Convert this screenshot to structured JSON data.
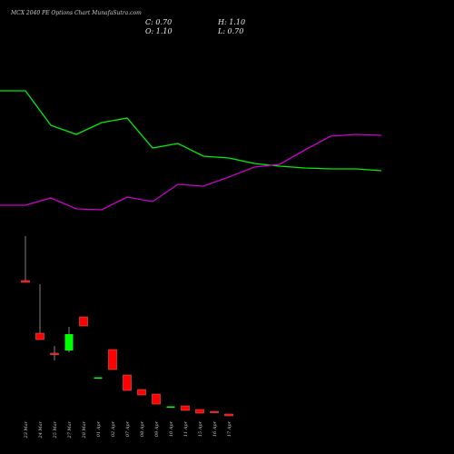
{
  "chart_data": {
    "type": "candlestick",
    "title": "MCX 2040 PE Options Chart MunafaSutra.com",
    "info": [
      "C: 0.70",
      "H: 1.10",
      "O: 1.10",
      "L: 0.70"
    ],
    "categories": [
      "23 Mar",
      "24 Mar",
      "25 Mar",
      "27 Mar",
      "28 Mar",
      "01 Apr",
      "02 Apr",
      "07 Apr",
      "08 Apr",
      "09 Apr",
      "10 Apr",
      "11 Apr",
      "15 Apr",
      "16 Apr",
      "17 Apr"
    ],
    "open": [
      30.5,
      18.9,
      14.5,
      15.1,
      22.5,
      9.0,
      15.3,
      9.7,
      6.5,
      5.5,
      2.7,
      2.9,
      2.1,
      1.7,
      1.1
    ],
    "high": [
      40.3,
      29.7,
      16.1,
      20.3,
      22.5,
      9.2,
      15.3,
      9.7,
      6.5,
      5.5,
      2.8,
      2.9,
      2.1,
      1.7,
      1.1
    ],
    "low": [
      30.1,
      17.5,
      12.9,
      14.7,
      20.5,
      9.0,
      10.9,
      6.3,
      5.3,
      3.3,
      2.7,
      1.9,
      1.3,
      1.5,
      0.7
    ],
    "close": [
      30.1,
      17.5,
      14.3,
      18.7,
      20.5,
      9.2,
      10.9,
      6.3,
      5.3,
      3.3,
      2.8,
      1.9,
      1.3,
      1.5,
      0.7
    ],
    "up_color": "#00ff00",
    "down_color": "#ff0000",
    "ylim": [
      0,
      92.3
    ],
    "lines": {
      "x": [
        0,
        1,
        2,
        3,
        4,
        5,
        6,
        7,
        8,
        9,
        10,
        11,
        12,
        13,
        14,
        15
      ],
      "xlim": [
        0,
        15
      ],
      "y2lim": [
        0,
        130
      ],
      "series": [
        {
          "color": "#00ee00",
          "axis": "y2",
          "values": [
            80,
            80,
            61,
            56,
            62.5,
            65,
            48.5,
            51,
            44,
            43,
            40,
            38.5,
            37.5,
            37,
            37,
            36
          ]
        },
        {
          "color": "#cc00cc",
          "axis": "y2",
          "values": [
            17,
            17,
            21,
            15,
            14.5,
            21.5,
            19,
            28.5,
            27.5,
            32.5,
            38,
            39.5,
            47.5,
            55,
            56,
            55.5
          ]
        }
      ]
    }
  }
}
